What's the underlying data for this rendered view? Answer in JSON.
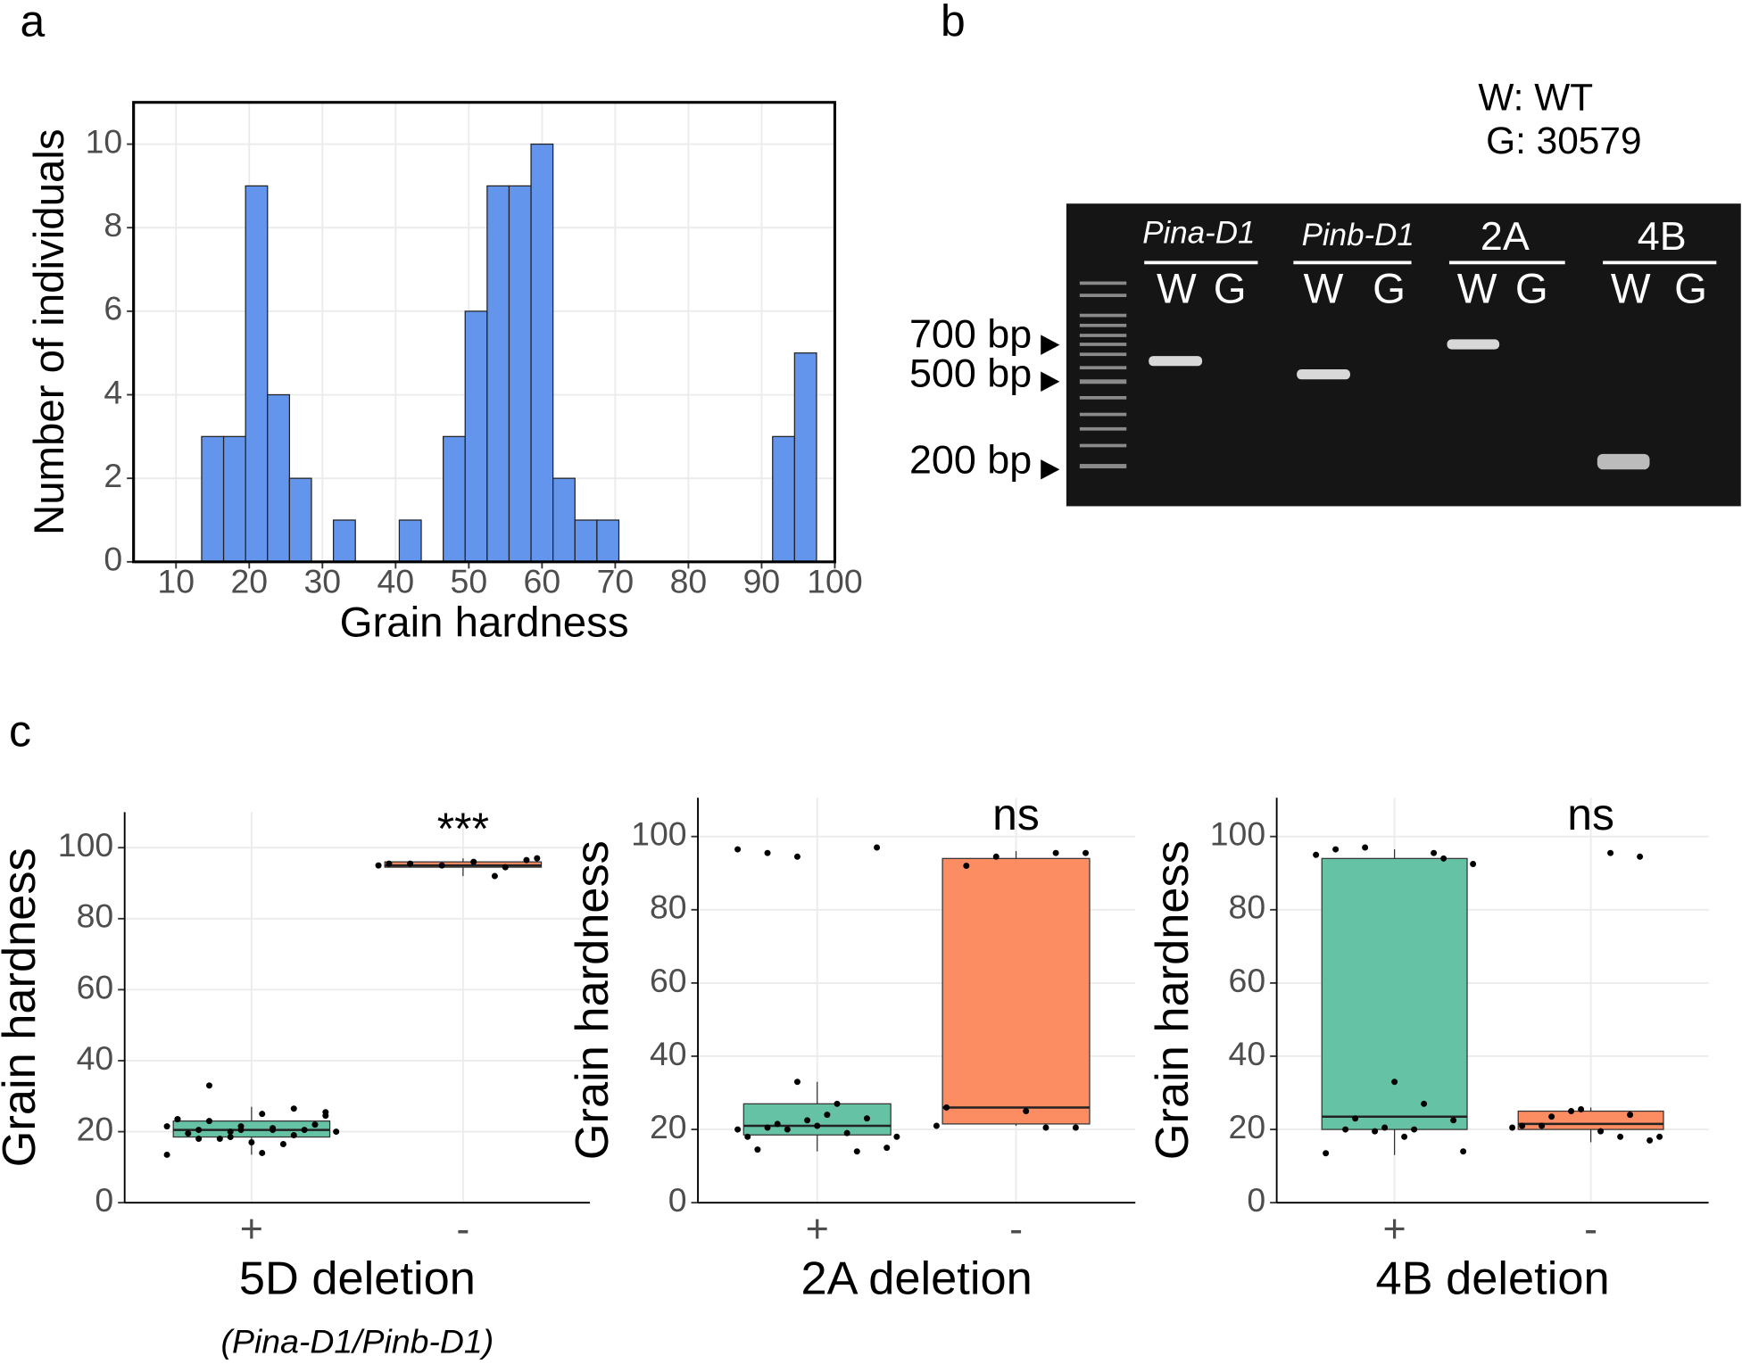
{
  "panel_labels": [
    "a",
    "b",
    "c"
  ],
  "gel": {
    "legend": [
      "W: WT",
      "G: 30579"
    ],
    "groups": [
      {
        "name": "Pina-D1",
        "lanes": [
          "W",
          "G"
        ]
      },
      {
        "name": "Pinb-D1",
        "lanes": [
          "W",
          "G"
        ]
      },
      {
        "name": "2A",
        "lanes": [
          "W",
          "G"
        ]
      },
      {
        "name": "4B",
        "lanes": [
          "W",
          "G"
        ]
      }
    ],
    "markers": [
      "700 bp",
      "500 bp",
      "200 bp"
    ]
  },
  "chart_data": [
    {
      "type": "histogram",
      "x_label": "Grain hardness",
      "y_label": "Number of individuals",
      "bins": [
        13.5,
        16.5,
        19.5,
        22.5,
        25.5,
        28.5,
        31.5,
        34.5,
        37.5,
        40.5,
        43.5,
        46.5,
        49.5,
        52.5,
        55.5,
        58.5,
        61.5,
        64.5,
        67.5,
        70.5,
        73.5,
        76.5,
        79.5,
        82.5,
        85.5,
        88.5,
        91.5,
        94.5,
        97.5
      ],
      "counts": [
        3,
        3,
        9,
        4,
        2,
        0,
        1,
        0,
        0,
        1,
        0,
        3,
        6,
        9,
        9,
        10,
        2,
        1,
        1,
        0,
        0,
        0,
        0,
        0,
        0,
        0,
        3,
        5
      ],
      "color": "#6495ed",
      "xlim": [
        4.2,
        100
      ],
      "ylim": [
        0,
        11
      ],
      "xticks": [
        10,
        20,
        30,
        40,
        50,
        60,
        70,
        80,
        90,
        100
      ],
      "yticks": [
        0,
        2,
        4,
        6,
        8,
        10
      ],
      "grid": true
    },
    {
      "type": "box",
      "y_label": "Grain hardness",
      "x_label": "5D deletion",
      "x_note": "(Pina-D1/Pinb-D1)",
      "categories": [
        "+",
        "-"
      ],
      "colors": [
        "#66c2a5",
        "#fc8d62"
      ],
      "annotation": "***",
      "boxes": [
        {
          "q1": 18.5,
          "median": 20.5,
          "q3": 23,
          "whisker_low": 13.5,
          "whisker_high": 27,
          "points": [
            13.5,
            18,
            18.5,
            25,
            26.5,
            25.5,
            23.5,
            23,
            21.5,
            20.5,
            20.5,
            20,
            19.5,
            18,
            17,
            16.5,
            22,
            21.5,
            20.5,
            20,
            14,
            19,
            24.5,
            23.5,
            33,
            20.5,
            21
          ]
        },
        {
          "q1": 94.5,
          "median": 95,
          "q3": 96,
          "whisker_low": 92,
          "whisker_high": 97,
          "points": [
            92,
            96.5,
            95,
            95.5,
            95,
            96,
            94.5,
            97,
            95.5
          ]
        }
      ],
      "ylim": [
        0,
        110
      ],
      "yticks": [
        0,
        20,
        40,
        60,
        80,
        100
      ],
      "grid": true
    },
    {
      "type": "box",
      "y_label": "Grain hardness",
      "x_label": "2A deletion",
      "categories": [
        "+",
        "-"
      ],
      "colors": [
        "#66c2a5",
        "#fc8d62"
      ],
      "annotation": "ns",
      "boxes": [
        {
          "q1": 18.5,
          "median": 21,
          "q3": 27,
          "whisker_low": 14,
          "whisker_high": 33,
          "points": [
            20,
            20.5,
            33,
            24,
            14,
            15,
            18,
            21.5,
            22.5,
            27,
            23,
            18,
            14.5,
            20,
            21,
            19,
            97,
            96.5,
            95.5,
            94.5
          ]
        },
        {
          "q1": 21.5,
          "median": 26,
          "q3": 94,
          "whisker_low": 21,
          "whisker_high": 96,
          "points": [
            20.5,
            20.5,
            21,
            92,
            94.5,
            25,
            95.5,
            95.5,
            26
          ]
        }
      ],
      "ylim": [
        0,
        110.6
      ],
      "yticks": [
        0,
        20,
        40,
        60,
        80,
        100
      ],
      "grid": true
    },
    {
      "type": "box",
      "y_label": "Grain hardness",
      "x_label": "4B deletion",
      "categories": [
        "+",
        "-"
      ],
      "colors": [
        "#66c2a5",
        "#fc8d62"
      ],
      "annotation": "ns",
      "boxes": [
        {
          "q1": 20,
          "median": 23.5,
          "q3": 94,
          "whisker_low": 13,
          "whisker_high": 96.5,
          "points": [
            95,
            20,
            19.5,
            18,
            95.5,
            14,
            13.5,
            23,
            20.5,
            20,
            94,
            92.5,
            96.5,
            97,
            33,
            27,
            22.5
          ]
        },
        {
          "q1": 20,
          "median": 21.5,
          "q3": 25,
          "whisker_low": 16.5,
          "whisker_high": 26,
          "points": [
            18,
            17,
            20.5,
            21,
            25,
            19.5,
            24,
            18,
            21,
            23.5,
            25.5,
            95.5,
            94.5
          ]
        }
      ],
      "ylim": [
        0,
        110.6
      ],
      "yticks": [
        0,
        20,
        40,
        60,
        80,
        100
      ],
      "grid": true
    }
  ]
}
